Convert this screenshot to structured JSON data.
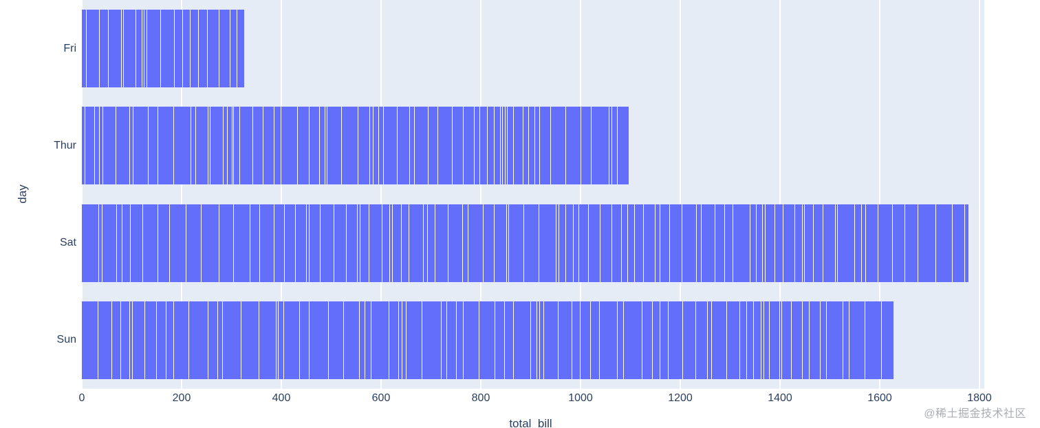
{
  "watermark": "@稀土掘金技术社区",
  "chart_data": {
    "type": "bar",
    "orientation": "horizontal",
    "title": "",
    "xlabel": "total_bill",
    "ylabel": "day",
    "categories": [
      "Fri",
      "Thur",
      "Sat",
      "Sun"
    ],
    "values": [
      325.88,
      1096.33,
      1778.4,
      1627.16
    ],
    "segment_counts": [
      19,
      62,
      87,
      76
    ],
    "xticks": [
      0,
      200,
      400,
      600,
      800,
      1000,
      1200,
      1400,
      1600,
      1800
    ],
    "xlim": [
      0,
      1810
    ],
    "grid": true,
    "legend_position": "none",
    "bar_color": "#636efa",
    "plot_bg": "#e5ecf6",
    "grid_color": "#ffffff",
    "text_color": "#2a3f5f"
  }
}
